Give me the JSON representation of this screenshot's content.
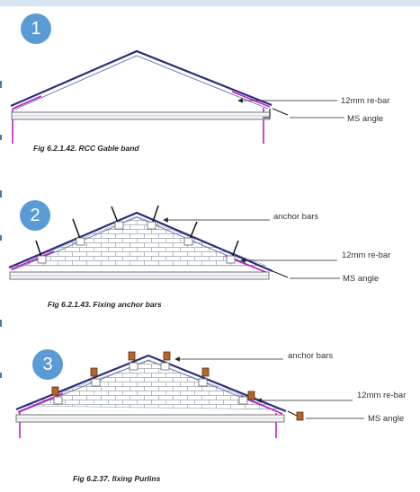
{
  "figures": [
    {
      "step": "1",
      "caption": "Fig 6.2.1.42.  RCC Gable band",
      "labels": [
        "12mm re-bar",
        "MS angle"
      ]
    },
    {
      "step": "2",
      "caption": "Fig 6.2.1.43. Fixing anchor bars",
      "labels": [
        "anchor bars",
        "12mm re-bar",
        "MS angle"
      ]
    },
    {
      "step": "3",
      "caption": "Fig 6.2.37. fixing Purlins",
      "labels": [
        "anchor bars",
        "12mm re-bar",
        "MS angle"
      ]
    }
  ],
  "colors": {
    "badge": "#5b9bd5",
    "roof_line": "#2b2f7a",
    "rebar": "#c020c0",
    "purlin": "#b5652a"
  }
}
